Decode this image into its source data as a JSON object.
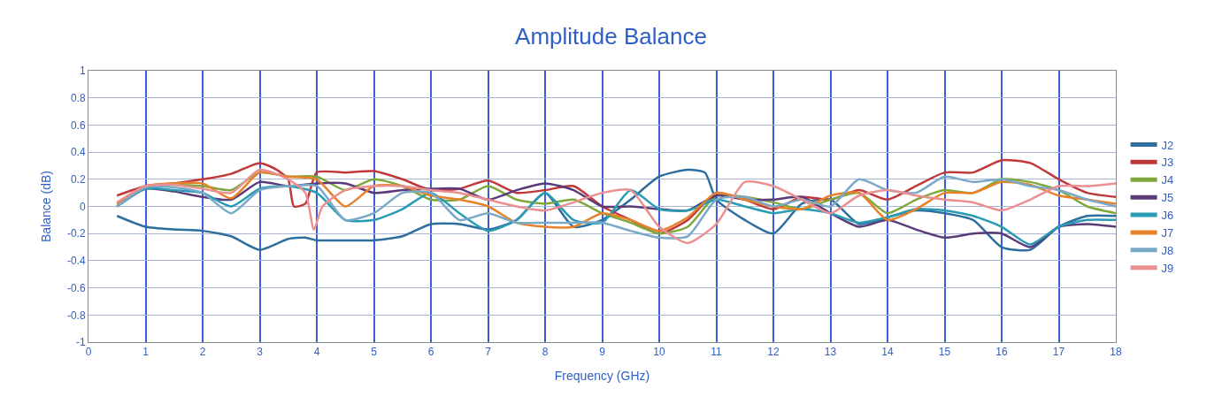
{
  "chart_data": {
    "type": "line",
    "title": "Amplitude Balance",
    "xlabel": "Frequency (GHz)",
    "ylabel": "Balance (dB)",
    "xlim": [
      0,
      18
    ],
    "xticks": [
      0,
      1,
      2,
      3,
      4,
      5,
      6,
      7,
      8,
      9,
      10,
      11,
      12,
      13,
      14,
      15,
      16,
      17,
      18
    ],
    "ylim": [
      -1,
      1
    ],
    "yticks": [
      -1,
      -0.8,
      -0.6,
      -0.4,
      -0.2,
      0,
      0.2,
      0.4,
      0.6,
      0.8,
      1
    ],
    "grid": true,
    "legend": "right",
    "marker": "none",
    "line_style": "solid",
    "series": [
      {
        "name": "J2",
        "color": "#2e6e9e",
        "x": [
          0.5,
          1,
          1.5,
          2,
          2.5,
          3,
          3.5,
          3.8,
          4,
          4.5,
          5,
          5.5,
          6,
          6.5,
          7,
          7.5,
          8,
          8.5,
          9,
          9.5,
          10,
          10.5,
          10.8,
          11,
          11.5,
          12,
          12.5,
          13,
          13.5,
          14,
          14.5,
          15,
          15.5,
          16,
          16.5,
          17,
          17.5,
          18
        ],
        "values": [
          -0.07,
          -0.15,
          -0.17,
          -0.18,
          -0.22,
          -0.32,
          -0.24,
          -0.23,
          -0.25,
          -0.25,
          -0.25,
          -0.22,
          -0.13,
          -0.13,
          -0.17,
          -0.1,
          0.1,
          -0.15,
          -0.1,
          0.05,
          0.22,
          0.27,
          0.25,
          0.05,
          -0.1,
          -0.2,
          0.02,
          0.05,
          -0.13,
          -0.08,
          -0.03,
          -0.05,
          -0.1,
          -0.3,
          -0.32,
          -0.15,
          -0.07,
          -0.07
        ]
      },
      {
        "name": "J3",
        "color": "#c0383a",
        "x": [
          0.5,
          1,
          1.5,
          2,
          2.5,
          3,
          3.3,
          3.5,
          3.6,
          3.8,
          4,
          4.5,
          5,
          5.5,
          6,
          6.5,
          7,
          7.5,
          8,
          8.5,
          9,
          9.5,
          10,
          10.5,
          11,
          11.5,
          12,
          12.5,
          13,
          13.5,
          14,
          14.5,
          15,
          15.5,
          16,
          16.5,
          17,
          17.5,
          18
        ],
        "values": [
          0.08,
          0.15,
          0.17,
          0.2,
          0.24,
          0.32,
          0.27,
          0.2,
          0.0,
          0.02,
          0.25,
          0.25,
          0.26,
          0.2,
          0.12,
          0.13,
          0.19,
          0.1,
          0.12,
          0.15,
          0.0,
          -0.1,
          -0.2,
          -0.1,
          0.1,
          0.05,
          -0.02,
          0.07,
          0.05,
          0.12,
          0.05,
          0.15,
          0.25,
          0.25,
          0.34,
          0.32,
          0.2,
          0.1,
          0.07
        ]
      },
      {
        "name": "J4",
        "color": "#7fa83c",
        "x": [
          0.5,
          1,
          1.5,
          2,
          2.5,
          3,
          3.5,
          4,
          4.5,
          5,
          5.5,
          6,
          6.5,
          7,
          7.5,
          8,
          8.5,
          9,
          9.5,
          10,
          10.5,
          11,
          11.5,
          12,
          12.5,
          13,
          13.5,
          14,
          14.5,
          15,
          15.5,
          16,
          16.5,
          17,
          17.5,
          18
        ],
        "values": [
          0.02,
          0.15,
          0.16,
          0.15,
          0.12,
          0.25,
          0.22,
          0.22,
          0.12,
          0.2,
          0.15,
          0.05,
          0.05,
          0.15,
          0.05,
          0.02,
          0.05,
          -0.05,
          -0.12,
          -0.2,
          -0.15,
          0.08,
          0.07,
          0.03,
          -0.02,
          0.05,
          0.1,
          -0.05,
          0.05,
          0.12,
          0.1,
          0.2,
          0.18,
          0.12,
          0.0,
          -0.05
        ]
      },
      {
        "name": "J5",
        "color": "#5a3a78",
        "x": [
          0.5,
          1,
          1.5,
          2,
          2.5,
          3,
          3.5,
          4,
          4.5,
          5,
          5.5,
          6,
          6.5,
          7,
          7.5,
          8,
          8.5,
          9,
          9.5,
          10,
          10.5,
          11,
          11.5,
          12,
          12.5,
          13,
          13.5,
          14,
          14.5,
          15,
          15.5,
          16,
          16.5,
          17,
          17.5,
          18
        ],
        "values": [
          0.0,
          0.13,
          0.11,
          0.07,
          0.05,
          0.18,
          0.15,
          0.17,
          0.17,
          0.1,
          0.12,
          0.13,
          0.13,
          0.05,
          0.12,
          0.17,
          0.12,
          0.0,
          0.0,
          -0.02,
          -0.03,
          0.08,
          0.05,
          0.05,
          0.07,
          -0.05,
          -0.15,
          -0.1,
          -0.17,
          -0.23,
          -0.2,
          -0.2,
          -0.3,
          -0.15,
          -0.13,
          -0.15
        ]
      },
      {
        "name": "J6",
        "color": "#2a9bb5",
        "x": [
          0.5,
          1,
          1.5,
          2,
          2.5,
          3,
          3.5,
          4,
          4.5,
          5,
          5.5,
          6,
          6.5,
          7,
          7.5,
          8,
          8.5,
          9,
          9.5,
          10,
          10.5,
          11,
          11.5,
          12,
          12.5,
          13,
          13.5,
          14,
          14.5,
          15,
          15.5,
          16,
          16.5,
          17,
          17.5,
          18
        ],
        "values": [
          0.0,
          0.13,
          0.12,
          0.1,
          0.0,
          0.13,
          0.15,
          0.1,
          -0.1,
          -0.1,
          -0.02,
          0.1,
          -0.05,
          -0.18,
          -0.1,
          0.1,
          -0.1,
          -0.12,
          0.12,
          -0.02,
          -0.03,
          0.05,
          0.0,
          -0.05,
          -0.02,
          -0.05,
          -0.12,
          -0.08,
          -0.02,
          -0.03,
          -0.07,
          -0.15,
          -0.28,
          -0.15,
          -0.1,
          -0.1
        ]
      },
      {
        "name": "J7",
        "color": "#e8822a",
        "x": [
          0.5,
          1,
          1.5,
          2,
          2.5,
          3,
          3.5,
          4,
          4.5,
          5,
          5.5,
          6,
          6.5,
          7,
          7.5,
          8,
          8.5,
          9,
          9.5,
          10,
          10.5,
          11,
          11.5,
          12,
          12.5,
          13,
          13.5,
          14,
          14.5,
          15,
          15.5,
          16,
          16.5,
          17,
          17.5,
          18
        ],
        "values": [
          0.02,
          0.15,
          0.17,
          0.17,
          0.06,
          0.25,
          0.22,
          0.2,
          0.0,
          0.15,
          0.15,
          0.08,
          0.05,
          0.0,
          -0.12,
          -0.15,
          -0.15,
          -0.05,
          -0.1,
          -0.18,
          -0.08,
          0.1,
          0.05,
          0.0,
          -0.02,
          0.08,
          0.1,
          -0.1,
          -0.02,
          0.1,
          0.1,
          0.18,
          0.16,
          0.08,
          0.05,
          0.02
        ]
      },
      {
        "name": "J8",
        "color": "#7aa9c8",
        "x": [
          0.5,
          1,
          1.5,
          2,
          2.5,
          3,
          3.5,
          4,
          4.5,
          5,
          5.5,
          6,
          6.5,
          7,
          7.5,
          8,
          8.5,
          9,
          9.5,
          10,
          10.5,
          11,
          11.5,
          12,
          12.5,
          13,
          13.5,
          14,
          14.5,
          15,
          15.5,
          16,
          16.5,
          17,
          17.5,
          18
        ],
        "values": [
          0.0,
          0.14,
          0.14,
          0.1,
          -0.05,
          0.12,
          0.15,
          0.15,
          -0.1,
          -0.05,
          0.1,
          0.1,
          -0.1,
          -0.05,
          -0.12,
          -0.12,
          -0.12,
          -0.12,
          -0.18,
          -0.23,
          -0.22,
          0.05,
          0.07,
          0.0,
          0.05,
          0.0,
          0.2,
          0.12,
          0.1,
          0.22,
          0.18,
          0.2,
          0.15,
          0.12,
          0.05,
          0.0
        ]
      },
      {
        "name": "J9",
        "color": "#ea9090",
        "x": [
          0.5,
          1,
          1.5,
          2,
          2.5,
          3,
          3.5,
          3.8,
          3.95,
          4.1,
          4.5,
          5,
          5.5,
          6,
          6.5,
          7,
          7.5,
          8,
          8.5,
          9,
          9.5,
          10,
          10.5,
          11,
          11.5,
          12,
          12.5,
          13,
          13.5,
          14,
          14.5,
          15,
          15.5,
          16,
          16.5,
          17,
          17.5,
          18
        ],
        "values": [
          0.03,
          0.15,
          0.16,
          0.13,
          0.1,
          0.27,
          0.2,
          0.1,
          -0.17,
          0.0,
          0.12,
          0.15,
          0.15,
          0.12,
          0.1,
          0.05,
          0.0,
          -0.03,
          0.03,
          0.1,
          0.12,
          -0.15,
          -0.27,
          -0.13,
          0.18,
          0.15,
          0.05,
          -0.05,
          0.08,
          0.12,
          0.08,
          0.05,
          0.03,
          -0.03,
          0.05,
          0.15,
          0.15,
          0.17
        ]
      }
    ]
  }
}
